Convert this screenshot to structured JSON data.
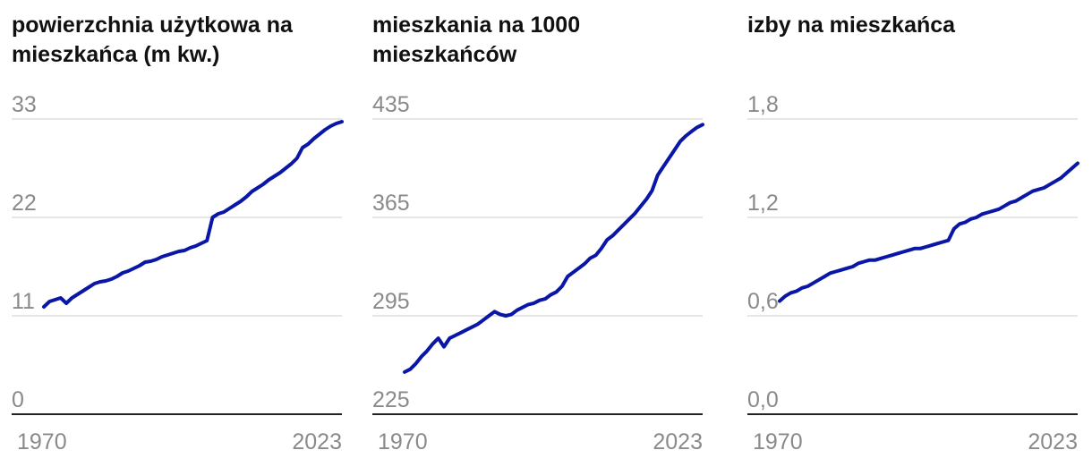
{
  "colors": {
    "line": "#0a16a6",
    "grid": "#dddddd",
    "tick": "#8a8a8a",
    "axis": "#222222"
  },
  "chart_data": [
    {
      "type": "line",
      "title": "powierzchnia użytkowa na mieszkańca (m kw.)",
      "xlim": [
        1970,
        2023
      ],
      "ylim": [
        0,
        33
      ],
      "yticks": [
        "0",
        "11",
        "22",
        "33"
      ],
      "xticks": [
        "1970",
        "2023"
      ],
      "grid": true,
      "x": [
        1970,
        1971,
        1972,
        1973,
        1974,
        1975,
        1976,
        1977,
        1978,
        1979,
        1980,
        1981,
        1982,
        1983,
        1984,
        1985,
        1986,
        1987,
        1988,
        1989,
        1990,
        1991,
        1992,
        1993,
        1994,
        1995,
        1996,
        1997,
        1998,
        1999,
        2000,
        2001,
        2002,
        2003,
        2004,
        2005,
        2006,
        2007,
        2008,
        2009,
        2010,
        2011,
        2012,
        2013,
        2014,
        2015,
        2016,
        2017,
        2018,
        2019,
        2020,
        2021,
        2022,
        2023
      ],
      "series": [
        {
          "values": [
            12.0,
            12.6,
            12.8,
            13.0,
            12.4,
            13.0,
            13.4,
            13.8,
            14.2,
            14.6,
            14.8,
            14.9,
            15.1,
            15.4,
            15.8,
            16.0,
            16.3,
            16.6,
            17.0,
            17.1,
            17.3,
            17.6,
            17.8,
            18.0,
            18.2,
            18.3,
            18.6,
            18.8,
            19.1,
            19.4,
            22.0,
            22.4,
            22.6,
            23.0,
            23.4,
            23.8,
            24.3,
            24.9,
            25.3,
            25.7,
            26.2,
            26.6,
            27.0,
            27.5,
            28.0,
            28.6,
            29.8,
            30.2,
            30.8,
            31.3,
            31.8,
            32.2,
            32.5,
            32.7
          ]
        }
      ]
    },
    {
      "type": "line",
      "title": "mieszkania na 1000 mieszkańców",
      "xlim": [
        1970,
        2023
      ],
      "ylim": [
        225,
        435
      ],
      "yticks": [
        "225",
        "295",
        "365",
        "435"
      ],
      "xticks": [
        "1970",
        "2023"
      ],
      "grid": true,
      "x": [
        1970,
        1971,
        1972,
        1973,
        1974,
        1975,
        1976,
        1977,
        1978,
        1979,
        1980,
        1981,
        1982,
        1983,
        1984,
        1985,
        1986,
        1987,
        1988,
        1989,
        1990,
        1991,
        1992,
        1993,
        1994,
        1995,
        1996,
        1997,
        1998,
        1999,
        2000,
        2001,
        2002,
        2003,
        2004,
        2005,
        2006,
        2007,
        2008,
        2009,
        2010,
        2011,
        2012,
        2013,
        2014,
        2015,
        2016,
        2017,
        2018,
        2019,
        2020,
        2021,
        2022,
        2023
      ],
      "series": [
        {
          "values": [
            255,
            257,
            261,
            266,
            270,
            275,
            279,
            273,
            279,
            281,
            283,
            285,
            287,
            289,
            292,
            295,
            298,
            296,
            295,
            296,
            299,
            301,
            303,
            304,
            306,
            307,
            310,
            312,
            316,
            323,
            326,
            329,
            332,
            336,
            338,
            343,
            349,
            352,
            356,
            360,
            364,
            368,
            373,
            378,
            384,
            395,
            401,
            407,
            413,
            419,
            423,
            426,
            429,
            431
          ]
        }
      ]
    },
    {
      "type": "line",
      "title": "izby na mieszkańca",
      "xlim": [
        1970,
        2023
      ],
      "ylim": [
        0.0,
        1.8
      ],
      "yticks": [
        "0,0",
        "0,6",
        "1,2",
        "1,8"
      ],
      "xticks": [
        "1970",
        "2023"
      ],
      "grid": true,
      "x": [
        1970,
        1971,
        1972,
        1973,
        1974,
        1975,
        1976,
        1977,
        1978,
        1979,
        1980,
        1981,
        1982,
        1983,
        1984,
        1985,
        1986,
        1987,
        1988,
        1989,
        1990,
        1991,
        1992,
        1993,
        1994,
        1995,
        1996,
        1997,
        1998,
        1999,
        2000,
        2001,
        2002,
        2003,
        2004,
        2005,
        2006,
        2007,
        2008,
        2009,
        2010,
        2011,
        2012,
        2013,
        2014,
        2015,
        2016,
        2017,
        2018,
        2019,
        2020,
        2021,
        2022,
        2023
      ],
      "series": [
        {
          "values": [
            0.69,
            0.72,
            0.74,
            0.75,
            0.77,
            0.78,
            0.8,
            0.82,
            0.84,
            0.86,
            0.87,
            0.88,
            0.89,
            0.9,
            0.92,
            0.93,
            0.94,
            0.94,
            0.95,
            0.96,
            0.97,
            0.98,
            0.99,
            1.0,
            1.01,
            1.01,
            1.02,
            1.03,
            1.04,
            1.05,
            1.06,
            1.13,
            1.16,
            1.17,
            1.19,
            1.2,
            1.22,
            1.23,
            1.24,
            1.25,
            1.27,
            1.29,
            1.3,
            1.32,
            1.34,
            1.36,
            1.37,
            1.38,
            1.4,
            1.42,
            1.44,
            1.47,
            1.5,
            1.53
          ]
        }
      ]
    }
  ]
}
